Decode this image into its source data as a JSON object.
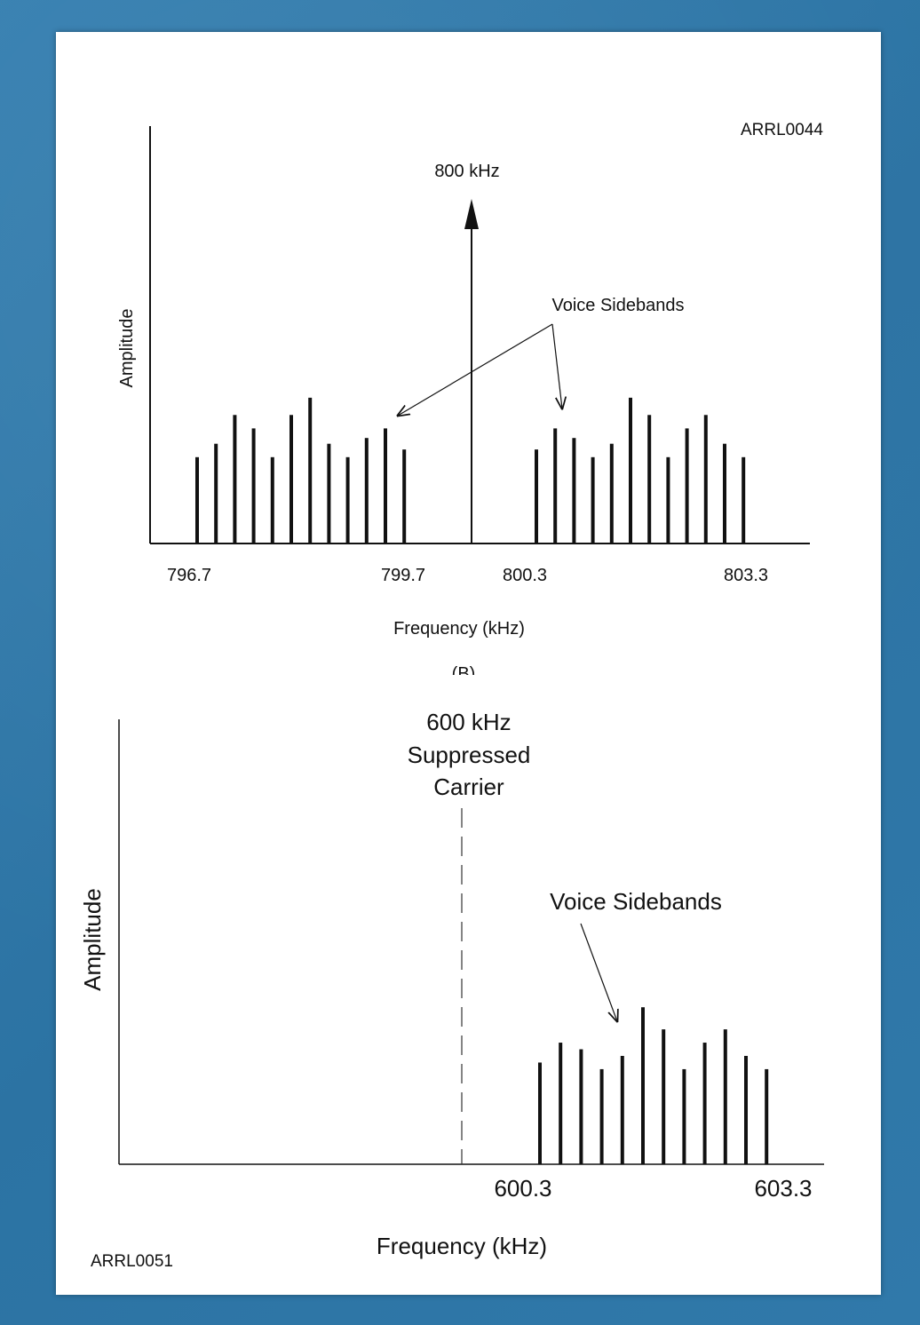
{
  "figure_b": {
    "code": "ARRL0044",
    "carrier_label": "800 kHz",
    "sidebands_label": "Voice Sidebands",
    "y_label": "Amplitude",
    "x_label": "Frequency (kHz)",
    "panel_label": "(B)",
    "tick_labels": [
      "796.7",
      "799.7",
      "800.3",
      "803.3"
    ],
    "lower_sideband_bar_levels": [
      0.45,
      0.52,
      0.67,
      0.6,
      0.45,
      0.67,
      0.76,
      0.52,
      0.45,
      0.55,
      0.6,
      0.49
    ],
    "upper_sideband_bar_levels": [
      0.49,
      0.6,
      0.55,
      0.45,
      0.52,
      0.76,
      0.67,
      0.45,
      0.6,
      0.67,
      0.52,
      0.45
    ]
  },
  "figure_c": {
    "code": "ARRL0051",
    "carrier_label_lines": [
      "600 kHz",
      "Suppressed",
      "Carrier"
    ],
    "sidebands_label": "Voice Sidebands",
    "y_label": "Amplitude",
    "x_label": "Frequency (kHz)",
    "tick_labels": [
      "600.3",
      "603.3"
    ],
    "upper_sideband_bar_levels": [
      0.46,
      0.55,
      0.52,
      0.43,
      0.49,
      0.71,
      0.61,
      0.43,
      0.55,
      0.61,
      0.49,
      0.43
    ]
  },
  "colors": {
    "background": "#2f77a8",
    "paper": "#ffffff",
    "ink": "#111111"
  }
}
